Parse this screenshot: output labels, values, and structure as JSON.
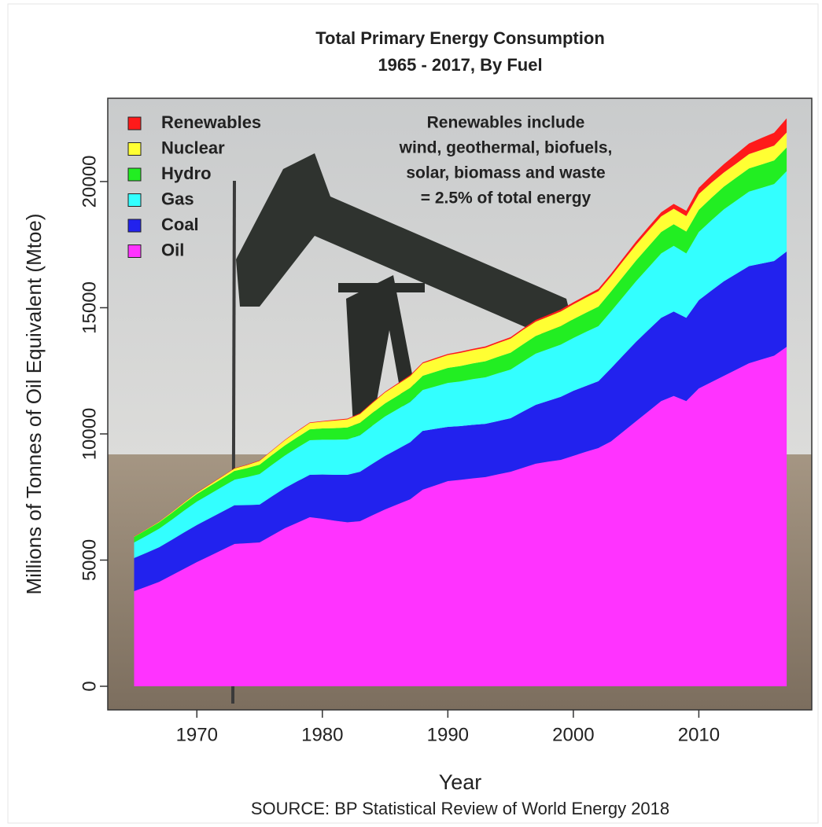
{
  "chart_data": {
    "type": "stacked-area",
    "title": "Total Primary Energy Consumption",
    "subtitle": "1965 - 2017, By Fuel",
    "x_label": "Year",
    "y_label": "Millions of Tonnes of Oil Equivalent (Mtoe)",
    "source": "SOURCE: BP Statistical Review of World Energy 2018",
    "annotation": [
      "Renewables include",
      "wind, geothermal, biofuels,",
      "solar, biomass and waste",
      "= 2.5% of total energy"
    ],
    "legend": "top-left",
    "x": [
      1965,
      1966,
      1967,
      1968,
      1969,
      1970,
      1971,
      1972,
      1973,
      1974,
      1975,
      1976,
      1977,
      1978,
      1979,
      1980,
      1981,
      1982,
      1983,
      1984,
      1985,
      1986,
      1987,
      1988,
      1989,
      1990,
      1991,
      1992,
      1993,
      1994,
      1995,
      1996,
      1997,
      1998,
      1999,
      2000,
      2001,
      2002,
      2003,
      2004,
      2005,
      2006,
      2007,
      2008,
      2009,
      2010,
      2011,
      2012,
      2013,
      2014,
      2015,
      2016,
      2017
    ],
    "series": [
      {
        "name": "Renewables",
        "color": "#ff1a1a",
        "values": [
          10,
          10,
          10,
          10,
          10,
          15,
          15,
          15,
          15,
          20,
          20,
          20,
          20,
          25,
          25,
          25,
          30,
          30,
          30,
          35,
          35,
          40,
          40,
          40,
          45,
          45,
          50,
          50,
          55,
          55,
          60,
          60,
          65,
          70,
          75,
          80,
          85,
          95,
          105,
          115,
          130,
          145,
          165,
          190,
          210,
          250,
          290,
          330,
          380,
          420,
          470,
          510,
          560
        ]
      },
      {
        "name": "Nuclear",
        "color": "#ffff33",
        "values": [
          10,
          15,
          20,
          30,
          40,
          50,
          65,
          80,
          100,
          120,
          150,
          170,
          200,
          230,
          250,
          270,
          300,
          320,
          350,
          390,
          430,
          450,
          470,
          490,
          500,
          510,
          520,
          525,
          535,
          545,
          555,
          570,
          570,
          575,
          585,
          590,
          600,
          610,
          600,
          620,
          625,
          630,
          620,
          615,
          610,
          625,
          600,
          560,
          560,
          570,
          580,
          590,
          595
        ]
      },
      {
        "name": "Hydro",
        "color": "#22ee22",
        "values": [
          220,
          235,
          250,
          265,
          280,
          295,
          310,
          325,
          340,
          355,
          370,
          385,
          400,
          415,
          430,
          445,
          460,
          475,
          490,
          505,
          520,
          535,
          550,
          565,
          580,
          595,
          610,
          625,
          640,
          655,
          670,
          685,
          700,
          715,
          730,
          745,
          760,
          775,
          790,
          805,
          820,
          835,
          850,
          860,
          870,
          880,
          890,
          900,
          910,
          920,
          925,
          935,
          940
        ]
      },
      {
        "name": "Gas",
        "color": "#33ffff",
        "values": [
          620,
          680,
          740,
          800,
          870,
          930,
          960,
          990,
          1020,
          1110,
          1210,
          1250,
          1290,
          1330,
          1370,
          1380,
          1390,
          1400,
          1450,
          1510,
          1560,
          1580,
          1600,
          1620,
          1680,
          1740,
          1770,
          1810,
          1840,
          1890,
          1930,
          1980,
          2030,
          2050,
          2070,
          2090,
          2140,
          2180,
          2250,
          2320,
          2400,
          2470,
          2550,
          2600,
          2550,
          2700,
          2780,
          2850,
          2900,
          2950,
          3000,
          3050,
          3180
        ]
      },
      {
        "name": "Coal",
        "color": "#2222ee",
        "values": [
          1310,
          1340,
          1370,
          1400,
          1440,
          1470,
          1490,
          1510,
          1530,
          1510,
          1500,
          1550,
          1590,
          1640,
          1680,
          1750,
          1820,
          1880,
          1960,
          2040,
          2120,
          2190,
          2260,
          2330,
          2240,
          2150,
          2130,
          2120,
          2110,
          2110,
          2120,
          2230,
          2330,
          2410,
          2500,
          2580,
          2610,
          2650,
          2900,
          3030,
          3150,
          3230,
          3300,
          3350,
          3300,
          3500,
          3630,
          3750,
          3800,
          3850,
          3800,
          3750,
          3780
        ]
      },
      {
        "name": "Oil",
        "color": "#ff33ff",
        "values": [
          3770,
          3950,
          4140,
          4400,
          4660,
          4920,
          5160,
          5400,
          5640,
          5670,
          5700,
          5980,
          6260,
          6480,
          6700,
          6640,
          6560,
          6500,
          6540,
          6780,
          7010,
          7210,
          7410,
          7790,
          7960,
          8130,
          8180,
          8240,
          8290,
          8400,
          8500,
          8660,
          8820,
          8900,
          8970,
          9130,
          9290,
          9440,
          9700,
          10100,
          10500,
          10900,
          11300,
          11500,
          11300,
          11800,
          12050,
          12300,
          12550,
          12800,
          12950,
          13100,
          13450
        ]
      }
    ],
    "xlim": [
      1962.9,
      2019.0
    ],
    "ylim": [
      -935,
      23300
    ],
    "xticks": [
      1970,
      1980,
      1990,
      2000,
      2010
    ],
    "yticks": [
      0,
      5000,
      10000,
      15000,
      20000
    ]
  }
}
